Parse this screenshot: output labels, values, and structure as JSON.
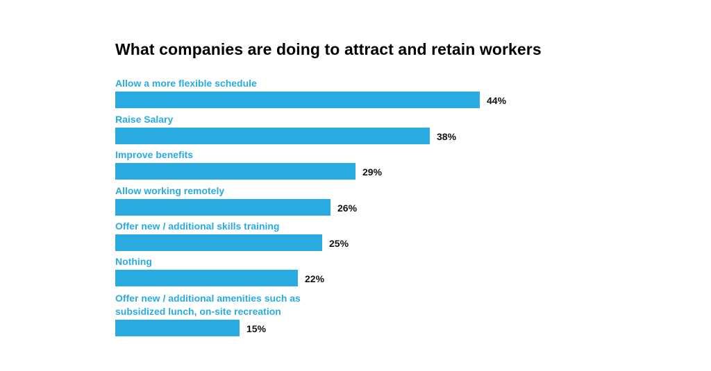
{
  "chart_data": {
    "type": "bar",
    "orientation": "horizontal",
    "title": "What companies are doing to attract and retain workers",
    "xlabel": "",
    "ylabel": "",
    "xlim": [
      0,
      44
    ],
    "grid": false,
    "unit": "%",
    "bar_color": "#29abe2",
    "label_color": "#29abe2",
    "categories": [
      [
        "Allow a more flexible schedule"
      ],
      [
        "Raise Salary"
      ],
      [
        "Improve benefits"
      ],
      [
        "Allow working remotely"
      ],
      [
        "Offer new / additional skills training"
      ],
      [
        "Nothing"
      ],
      [
        "Offer new / additional amenities such as",
        "subsidized lunch, on-site recreation"
      ]
    ],
    "values": [
      44,
      38,
      29,
      26,
      25,
      22,
      15
    ],
    "value_labels": [
      "44%",
      "38%",
      "29%",
      "26%",
      "25%",
      "22%",
      "15%"
    ]
  }
}
